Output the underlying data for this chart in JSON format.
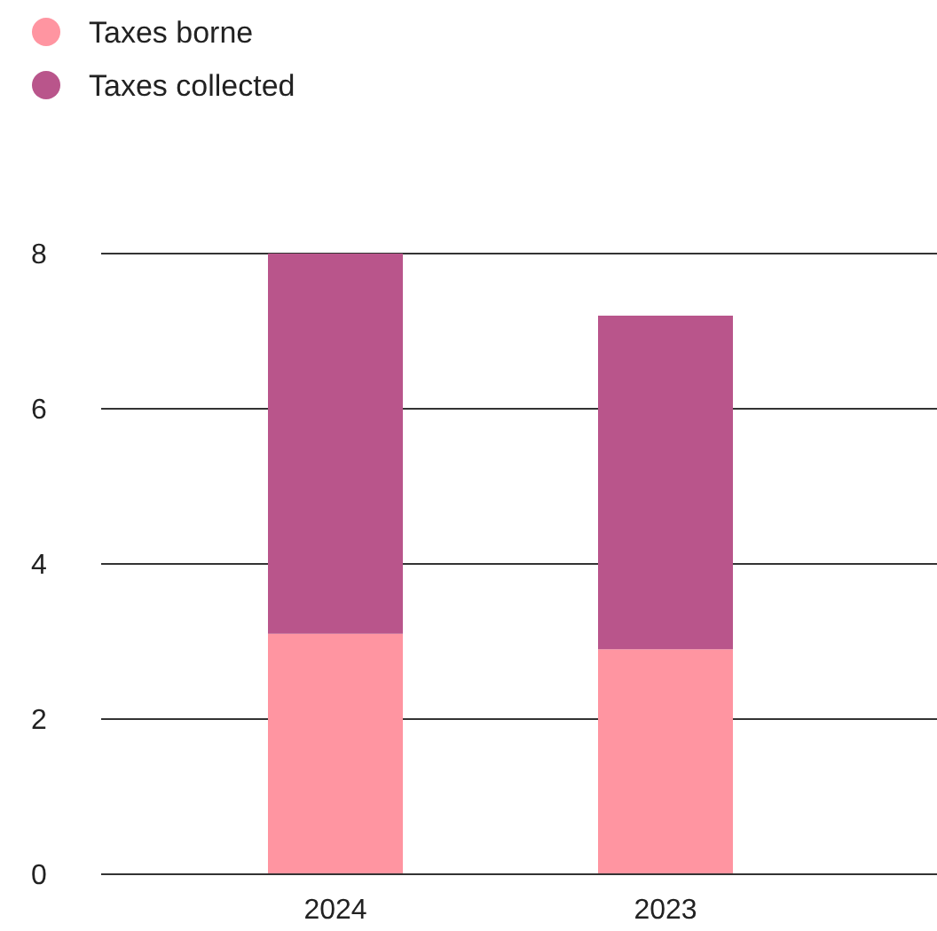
{
  "chart_data": {
    "type": "bar",
    "stacked": true,
    "categories": [
      "2024",
      "2023"
    ],
    "series": [
      {
        "name": "Taxes borne",
        "color": "#ff95a1",
        "values": [
          3.1,
          2.9
        ]
      },
      {
        "name": "Taxes collected",
        "color": "#b9558b",
        "values": [
          4.9,
          4.3
        ]
      }
    ],
    "ylim": [
      0,
      8
    ],
    "yticks": [
      0,
      2,
      4,
      6,
      8
    ],
    "grid": "y",
    "legend": "top left"
  }
}
